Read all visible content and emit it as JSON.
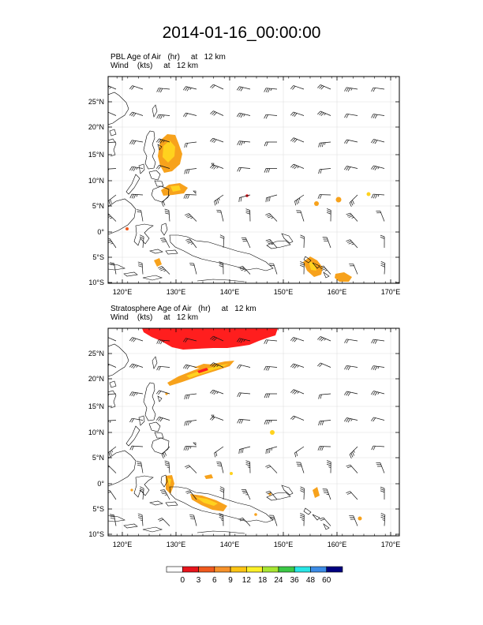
{
  "title": "2014-01-16_00:00:00",
  "panels": [
    {
      "label_line1": "PBL Age of Air   (hr)     at   12 km",
      "label_line2": "Wind    (kts)     at   12 km"
    },
    {
      "label_line1": "Stratosphere Age of Air   (hr)     at   12 km",
      "label_line2": "Wind    (kts)     at   12 km"
    }
  ],
  "map": {
    "lon_ticks": [
      "120°E",
      "130°E",
      "140°E",
      "150°E",
      "160°E",
      "170°E"
    ],
    "lat_ticks": [
      "25°N",
      "20°N",
      "15°N",
      "10°N",
      "5°N",
      "0°",
      "5°S",
      "10°S"
    ]
  },
  "colorbar": {
    "labels": [
      "0",
      "3",
      "6",
      "9",
      "12",
      "18",
      "24",
      "36",
      "48",
      "60"
    ],
    "colors": [
      "#ffffff",
      "#e8141c",
      "#f05a1e",
      "#f6922a",
      "#fcc414",
      "#fcf028",
      "#a8e632",
      "#3cc846",
      "#28e6e6",
      "#3c8ce6",
      "#000080"
    ]
  },
  "palette": {
    "high": "#ff1e1e",
    "orange": "#f7a21c",
    "yellow": "#ffd21e"
  }
}
